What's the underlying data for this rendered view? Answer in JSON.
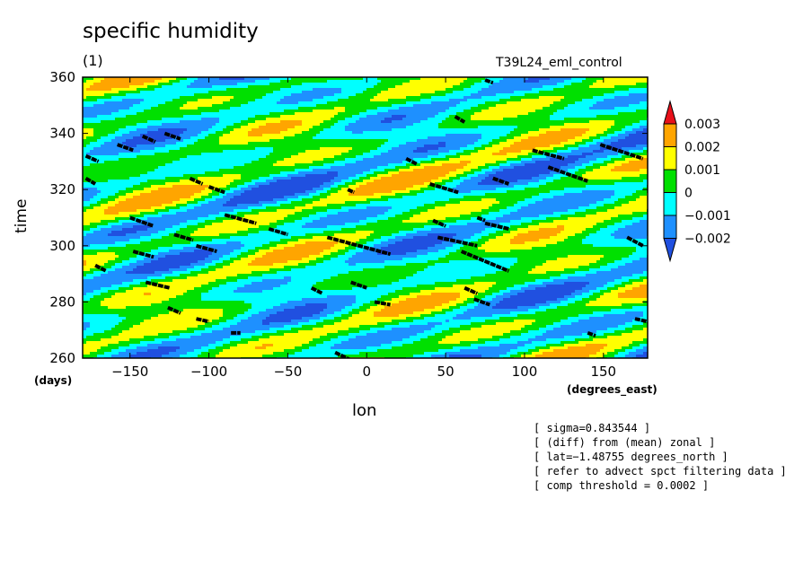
{
  "chart_data": {
    "type": "heatmap",
    "title": "specific humidity",
    "subtitle": "(1)",
    "experiment": "T39L24_eml_control",
    "xlabel": "lon",
    "ylabel": "time",
    "xunit": "(degrees_east)",
    "yunit": "(days)",
    "xlim": [
      -180,
      178
    ],
    "ylim": [
      260,
      360
    ],
    "xticks": [
      -150,
      -100,
      -50,
      0,
      50,
      100,
      150
    ],
    "yticks": [
      260,
      280,
      300,
      320,
      340,
      360
    ],
    "xtick_labels": [
      "−150",
      "−100",
      "−50",
      "0",
      "50",
      "100",
      "150"
    ],
    "ytick_labels": [
      "260",
      "280",
      "300",
      "320",
      "340",
      "360"
    ],
    "colorbar": {
      "levels": [
        "0.003",
        "0.002",
        "0.001",
        "0",
        "−0.001",
        "−0.002"
      ],
      "colors": [
        "#e8101a",
        "#ffa500",
        "#ffff00",
        "#00e000",
        "#00ffff",
        "#1e90ff",
        "#2050e0"
      ],
      "placement": "right"
    },
    "stipple_color": "#000000",
    "notes": [
      "[ sigma=0.843544 ]",
      "[ (diff) from (mean) zonal ]",
      "[ lat=−1.48755 degrees_north ]",
      "[ refer to advect spct filtering data ]",
      "[ comp threshold = 0.0002 ]"
    ]
  }
}
